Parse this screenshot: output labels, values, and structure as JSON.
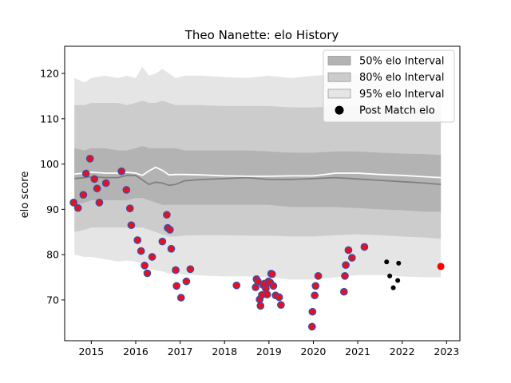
{
  "chart_data": {
    "type": "scatter",
    "title": "Theo Nanette: elo History",
    "xlabel": "",
    "ylabel": "elo score",
    "xlim": [
      2014.4,
      2023.3
    ],
    "ylim": [
      61,
      126
    ],
    "x_ticks": [
      2015,
      2016,
      2017,
      2018,
      2019,
      2020,
      2021,
      2022,
      2023
    ],
    "y_ticks": [
      70,
      80,
      90,
      100,
      110,
      120
    ],
    "legend": {
      "placement": "top-right",
      "entries": [
        "50% elo Interval",
        "80% elo Interval",
        "95% elo Interval",
        "Post Match elo"
      ]
    },
    "colors": {
      "band50": "#b3b3b3",
      "band80": "#cccccc",
      "band95": "#e5e5e5",
      "median_line": "#ffffff",
      "post_match_face": "#e8101e",
      "post_match_edge": "#3a4fa8",
      "post_match_black": "#000000",
      "latest": "#ff0000"
    },
    "bands": {
      "x": [
        2014.62,
        2014.85,
        2015.0,
        2015.3,
        2015.6,
        2015.8,
        2016.0,
        2016.15,
        2016.3,
        2016.45,
        2016.6,
        2016.75,
        2016.9,
        2017.1,
        2017.5,
        2018.0,
        2018.5,
        2019.0,
        2019.5,
        2020.0,
        2020.5,
        2021.0,
        2021.5,
        2022.0,
        2022.5,
        2022.87
      ],
      "lo95": [
        80.0,
        79.5,
        79.5,
        79.0,
        78.5,
        78.7,
        78.5,
        78.0,
        77.0,
        76.5,
        76.3,
        75.8,
        75.8,
        75.6,
        75.4,
        75.2,
        75.2,
        75.0,
        74.5,
        74.5,
        75.0,
        75.5,
        75.5,
        75.2,
        75.0,
        75.0
      ],
      "hi95": [
        119.0,
        118.0,
        119.0,
        119.5,
        119.0,
        119.5,
        119.0,
        121.5,
        119.5,
        120.0,
        121.0,
        120.0,
        119.0,
        119.5,
        119.5,
        119.2,
        119.0,
        119.5,
        119.0,
        119.5,
        119.8,
        119.8,
        119.5,
        119.0,
        118.5,
        118.5
      ],
      "lo80": [
        85.0,
        85.5,
        86.0,
        86.0,
        86.0,
        86.0,
        86.0,
        86.0,
        85.5,
        85.0,
        84.5,
        84.0,
        84.0,
        84.2,
        84.3,
        84.3,
        84.2,
        84.2,
        84.0,
        84.0,
        84.3,
        84.5,
        84.3,
        84.0,
        83.8,
        83.5
      ],
      "hi80": [
        113.0,
        113.0,
        113.5,
        113.5,
        113.5,
        113.0,
        113.5,
        114.0,
        113.5,
        113.5,
        114.0,
        113.5,
        113.0,
        113.0,
        113.0,
        112.8,
        112.8,
        112.8,
        112.5,
        112.5,
        112.8,
        112.8,
        112.5,
        112.3,
        112.0,
        112.0
      ],
      "lo50": [
        91.0,
        91.5,
        92.0,
        92.0,
        92.0,
        92.0,
        92.5,
        92.5,
        92.0,
        91.5,
        91.0,
        91.0,
        91.0,
        91.0,
        91.0,
        91.0,
        91.0,
        91.0,
        90.5,
        90.5,
        90.5,
        90.3,
        90.0,
        89.8,
        89.5,
        89.5
      ],
      "hi50": [
        103.5,
        103.0,
        103.5,
        103.5,
        103.0,
        103.0,
        103.5,
        104.0,
        103.5,
        103.5,
        103.5,
        103.5,
        103.5,
        103.0,
        103.0,
        103.0,
        103.0,
        102.8,
        102.5,
        102.5,
        102.8,
        102.8,
        102.5,
        102.3,
        102.2,
        102.0
      ],
      "median_white": [
        97.8,
        98.0,
        98.2,
        98.0,
        98.0,
        98.2,
        98.0,
        97.5,
        98.5,
        99.3,
        98.6,
        97.6,
        97.7,
        97.7,
        97.6,
        97.4,
        97.3,
        97.3,
        97.4,
        97.4,
        98.0,
        98.0,
        97.7,
        97.5,
        97.2,
        97.0
      ],
      "median_dark": [
        96.8,
        97.0,
        97.2,
        97.0,
        97.0,
        97.5,
        97.5,
        96.5,
        95.5,
        96.0,
        95.8,
        95.3,
        95.5,
        96.3,
        96.6,
        96.8,
        97.0,
        96.6,
        96.6,
        96.8,
        97.0,
        96.7,
        96.4,
        96.1,
        95.8,
        95.5
      ]
    },
    "series": [
      {
        "name": "Post Match elo",
        "x": [
          2014.6,
          2014.7,
          2014.82,
          2014.88,
          2014.97,
          2015.07,
          2015.13,
          2015.18,
          2015.33,
          2015.68,
          2015.79,
          2015.87,
          2015.9,
          2016.04,
          2016.12,
          2016.2,
          2016.26,
          2016.37,
          2016.6,
          2016.7,
          2016.72,
          2016.77,
          2016.8,
          2016.9,
          2016.92,
          2017.02,
          2017.14,
          2017.23,
          2018.27,
          2018.7,
          2018.72,
          2018.75,
          2018.79,
          2018.81,
          2018.84,
          2018.87,
          2018.9,
          2018.93,
          2018.96,
          2018.99,
          2019.03,
          2019.05,
          2019.07,
          2019.1,
          2019.15,
          2019.23,
          2019.27,
          2019.97,
          2019.98,
          2020.03,
          2020.05,
          2020.11,
          2020.69,
          2020.71,
          2020.73,
          2020.79,
          2020.87,
          2021.15
        ],
        "y": [
          91.5,
          90.3,
          93.2,
          97.9,
          101.2,
          96.7,
          94.6,
          91.5,
          95.8,
          98.4,
          94.3,
          90.2,
          86.5,
          83.2,
          80.8,
          77.6,
          75.9,
          79.5,
          82.9,
          88.8,
          85.9,
          85.5,
          81.3,
          76.6,
          73.1,
          70.5,
          74.1,
          76.8,
          73.2,
          72.8,
          74.6,
          74.1,
          70.1,
          68.7,
          71.1,
          73.3,
          73.6,
          72.5,
          71.2,
          74.1,
          73.8,
          75.8,
          75.7,
          73.1,
          71.0,
          70.6,
          68.9,
          64.1,
          67.4,
          71.0,
          73.1,
          75.3,
          71.8,
          75.3,
          77.7,
          81.0,
          79.3,
          81.7
        ],
        "style": "red-blue"
      },
      {
        "name": "Post Match elo (black)",
        "x": [
          2021.65,
          2021.72,
          2021.8,
          2021.9,
          2021.92
        ],
        "y": [
          78.4,
          75.3,
          72.7,
          74.3,
          78.1
        ],
        "style": "black"
      },
      {
        "name": "Latest",
        "x": [
          2022.87
        ],
        "y": [
          77.4
        ],
        "style": "red"
      }
    ]
  }
}
